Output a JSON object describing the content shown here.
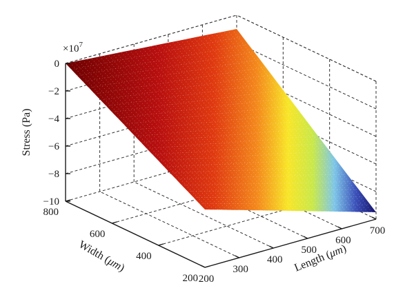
{
  "chart_data": {
    "type": "surface",
    "z_exponent_label": "×10",
    "z_exponent_power": "7",
    "zlabel": "Stress (Pa)",
    "xlabel_prefix": "Length (",
    "xlabel_unit": "μm",
    "xlabel_suffix": ")",
    "ylabel_prefix": "Width (",
    "ylabel_unit": "μm",
    "ylabel_suffix": ")",
    "x_ticks": [
      "200",
      "300",
      "400",
      "500",
      "600",
      "700"
    ],
    "y_ticks": [
      "200",
      "400",
      "600",
      "800"
    ],
    "z_ticks": [
      "0",
      "−2",
      "−4",
      "−6",
      "−8",
      "−10"
    ],
    "xlim": [
      200,
      700
    ],
    "ylim": [
      200,
      800
    ],
    "zlim": [
      -10,
      0
    ],
    "surface_corners": [
      {
        "length": 200,
        "width": 800,
        "stress_e7": 0.0
      },
      {
        "length": 200,
        "width": 200,
        "stress_e7": -5.8
      },
      {
        "length": 700,
        "width": 800,
        "stress_e7": -1.0
      },
      {
        "length": 700,
        "width": 200,
        "stress_e7": -9.5
      }
    ],
    "colormap": "jet",
    "grid": true
  }
}
